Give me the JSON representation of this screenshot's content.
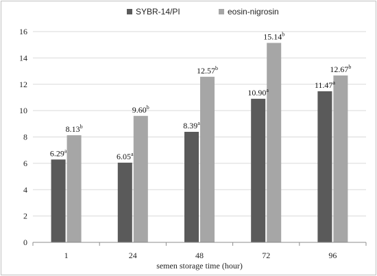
{
  "chart_data": {
    "type": "bar",
    "categories": [
      "1",
      "24",
      "48",
      "72",
      "96"
    ],
    "series": [
      {
        "name": "SYBR-14/PI",
        "color": "#5a5a5a",
        "values": [
          6.29,
          6.05,
          8.39,
          10.9,
          11.47
        ],
        "labels": [
          "6.29",
          "6.05",
          "8.39",
          "10.90",
          "11.47"
        ],
        "superscripts": [
          "a",
          "a",
          "a",
          "a",
          "a"
        ]
      },
      {
        "name": "eosin-nigrosin",
        "color": "#a6a6a6",
        "values": [
          8.13,
          9.6,
          12.57,
          15.14,
          12.67
        ],
        "labels": [
          "8.13",
          "9.60",
          "12.57",
          "15.14",
          "12.67"
        ],
        "superscripts": [
          "b",
          "b",
          "b",
          "b",
          "b"
        ]
      }
    ],
    "xlabel": "semen storage time (hour)",
    "ylabel": "",
    "ylim": [
      0,
      16
    ],
    "yticks": [
      0,
      2,
      4,
      6,
      8,
      10,
      12,
      14,
      16
    ],
    "grid": true,
    "legend_position": "top-center"
  }
}
